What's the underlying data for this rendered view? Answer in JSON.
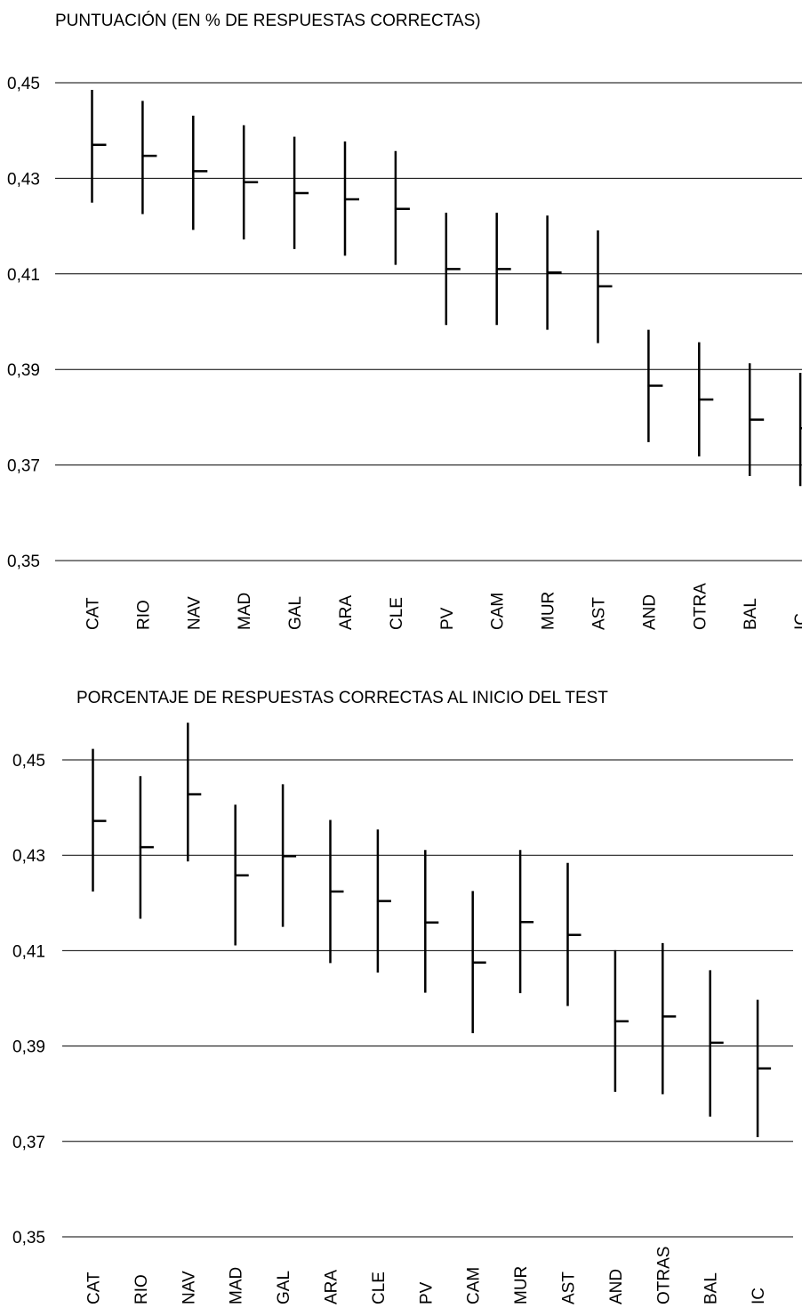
{
  "chart_data": [
    {
      "type": "error-bar",
      "title": "PUNTUACIÓN (EN % DE RESPUESTAS CORRECTAS)",
      "ylim": [
        0.35,
        0.45
      ],
      "yticks": [
        "0,45",
        "0,43",
        "0,41",
        "0,39",
        "0,37",
        "0,35"
      ],
      "categories": [
        "CAT",
        "RIO",
        "NAV",
        "MAD",
        "GAL",
        "ARA",
        "CLE",
        "PV",
        "CAM",
        "MUR",
        "AST",
        "AND",
        "OTRA",
        "BAL",
        "IC"
      ],
      "values": [
        0.437,
        0.4347,
        0.4315,
        0.4292,
        0.4269,
        0.4256,
        0.4236,
        0.411,
        0.411,
        0.4103,
        0.4074,
        0.3866,
        0.3837,
        0.3795,
        0.3777
      ],
      "lower": [
        0.4249,
        0.4225,
        0.4192,
        0.4172,
        0.4152,
        0.4138,
        0.4119,
        0.3993,
        0.3993,
        0.3983,
        0.3955,
        0.3748,
        0.3718,
        0.3677,
        0.3656
      ],
      "upper": [
        0.4485,
        0.4462,
        0.4431,
        0.4411,
        0.4387,
        0.4377,
        0.4357,
        0.4228,
        0.4228,
        0.4222,
        0.4191,
        0.3983,
        0.3957,
        0.3913,
        0.3893
      ],
      "grid": true
    },
    {
      "type": "error-bar",
      "title": "PORCENTAJE DE RESPUESTAS CORRECTAS AL INICIO DEL TEST",
      "ylim": [
        0.35,
        0.45
      ],
      "yticks": [
        "0,45",
        "0,43",
        "0,41",
        "0,39",
        "0,37",
        "0,35"
      ],
      "categories": [
        "CAT",
        "RIO",
        "NAV",
        "MAD",
        "GAL",
        "ARA",
        "CLE",
        "PV",
        "CAM",
        "MUR",
        "AST",
        "AND",
        "OTRAS",
        "BAL",
        "IC"
      ],
      "values": [
        0.4372,
        0.4317,
        0.4428,
        0.4258,
        0.4298,
        0.4224,
        0.4204,
        0.4159,
        0.4075,
        0.416,
        0.4133,
        0.3952,
        0.3962,
        0.3907,
        0.3853
      ],
      "lower": [
        0.4224,
        0.4167,
        0.4287,
        0.4111,
        0.415,
        0.4074,
        0.4054,
        0.4012,
        0.3927,
        0.4011,
        0.3984,
        0.3804,
        0.3799,
        0.3752,
        0.3709
      ],
      "upper": [
        0.4523,
        0.4466,
        0.4578,
        0.4406,
        0.4449,
        0.4374,
        0.4354,
        0.4311,
        0.4225,
        0.4311,
        0.4284,
        0.4101,
        0.4116,
        0.4059,
        0.3997
      ],
      "grid": true
    }
  ]
}
